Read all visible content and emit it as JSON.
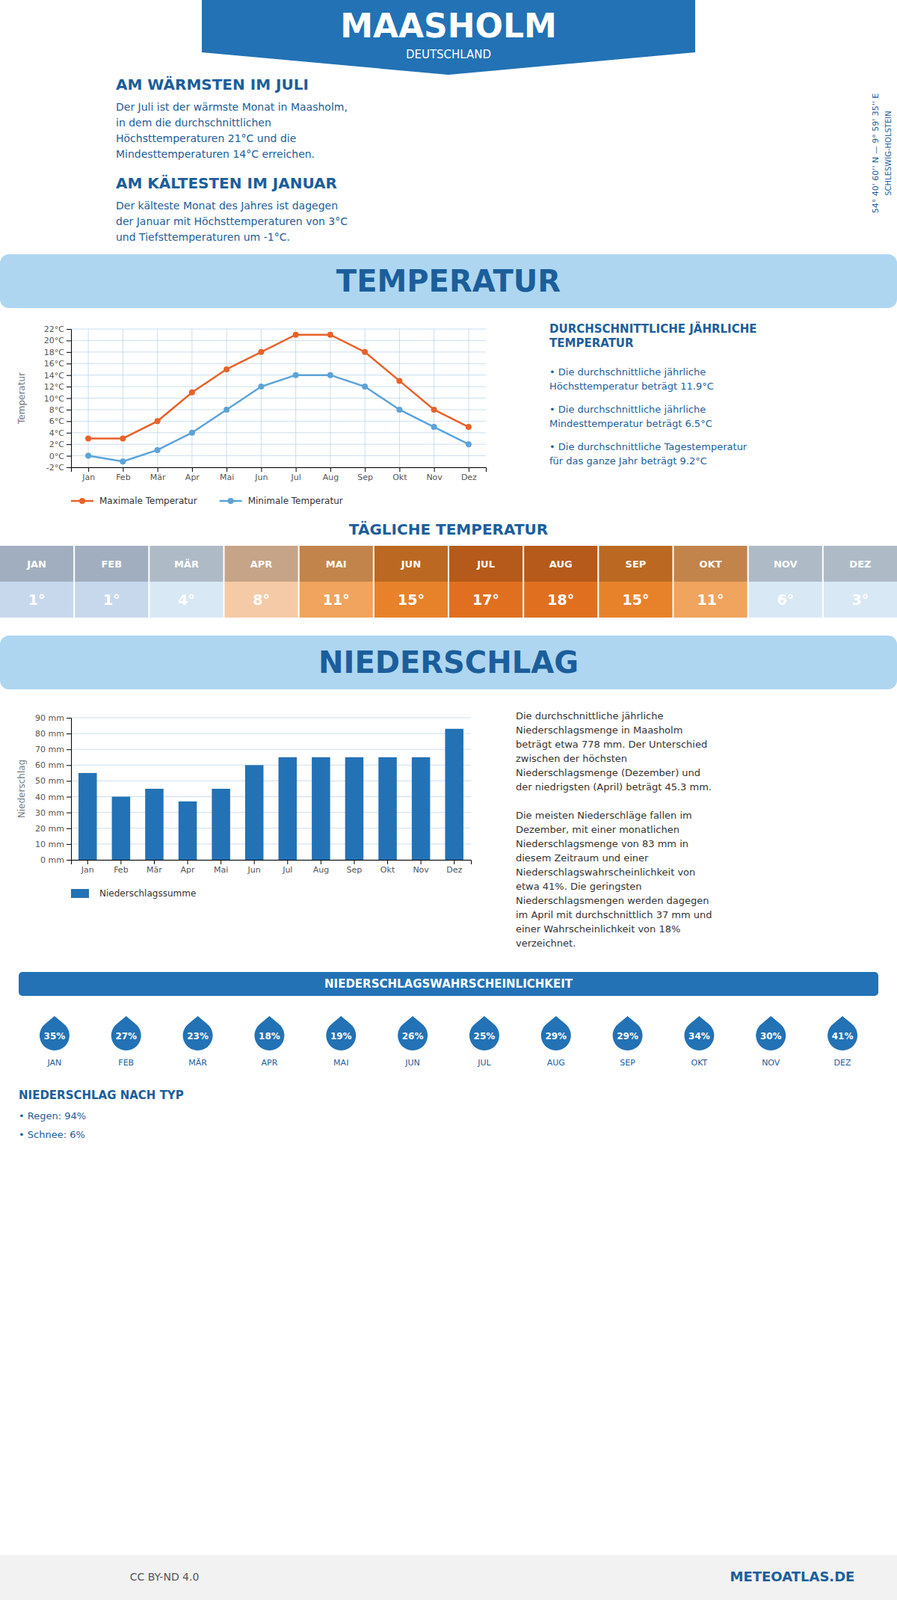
{
  "title": "MAASHOLM",
  "subtitle": "DEUTSCHLAND",
  "annotations": [
    "AM WÄRMSTEN IM JULI",
    "Der Juli ist der wärmste Monat in Maasholm,\nin dem die durchschnittlichen\nHöchsttemperaturen 21°C und die\nMindesttemperaturen 14°C erreichen.",
    "AM KÄLTESTEN IM JANUAR",
    "Der kälteste Monat des Jahres ist dagegen\nder Januar mit Höchsttemperaturen von 3°C\nund Tiefsttemperaturen um -1°C.",
    "54° 40' 60'' N  —  9° 59' 35'' E",
    "SCHLESWIG-HOLSTEIN",
    "CC BY-ND 4.0",
    "METEOATLAS.DE"
  ],
  "chart_data": [
    {
      "type": "line",
      "title": "TEMPERATUR",
      "ylabel": "Temperatur",
      "categories": [
        "Jan",
        "Feb",
        "Mär",
        "Apr",
        "Mai",
        "Jun",
        "Jul",
        "Aug",
        "Sep",
        "Okt",
        "Nov",
        "Dez"
      ],
      "series": [
        {
          "name": "Maximale Temperatur",
          "color": "#E8622A",
          "marker": "circle",
          "values": [
            3,
            3,
            6,
            11,
            15,
            18,
            21,
            21,
            18,
            13,
            8,
            5
          ]
        },
        {
          "name": "Minimale Temperatur",
          "color": "#5BA3D9",
          "marker": "circle",
          "values": [
            0,
            -1,
            1,
            4,
            8,
            12,
            14,
            14,
            12,
            8,
            5,
            2
          ]
        }
      ],
      "ylim": [
        -2,
        22
      ],
      "yticks": [
        {
          "value": -2,
          "label": "-2°C"
        },
        {
          "value": 0,
          "label": "0°C"
        },
        {
          "value": 2,
          "label": "2°C"
        },
        {
          "value": 4,
          "label": "4°C"
        },
        {
          "value": 6,
          "label": "6°C"
        },
        {
          "value": 8,
          "label": "8°C"
        },
        {
          "value": 10,
          "label": "10°C"
        },
        {
          "value": 12,
          "label": "12°C"
        },
        {
          "value": 14,
          "label": "14°C"
        },
        {
          "value": 16,
          "label": "16°C"
        },
        {
          "value": 18,
          "label": "18°C"
        },
        {
          "value": 20,
          "label": "20°C"
        },
        {
          "value": 22,
          "label": "22°C"
        }
      ],
      "grid": true,
      "legend": "bottom",
      "annotations": [
        "DURCHSCHNITTLICHE JÄHRLICHE\nTEMPERATUR",
        "• Die durchschnittliche jährliche\nHöchsttemperatur beträgt 11.9°C",
        "• Die durchschnittliche jährliche\nMindesttemperatur beträgt 6.5°C",
        "• Die durchschnittliche Tagestemperatur\nfür das ganze Jahr beträgt 9.2°C"
      ]
    },
    {
      "type": "table",
      "title": "TÄGLICHE TEMPERATUR",
      "categories": [
        "JAN",
        "FEB",
        "MÄR",
        "APR",
        "MAI",
        "JUN",
        "JUL",
        "AUG",
        "SEP",
        "OKT",
        "NOV",
        "DEZ"
      ],
      "values": [
        1,
        1,
        4,
        8,
        11,
        15,
        17,
        18,
        15,
        11,
        6,
        3
      ],
      "value_labels": [
        "1°",
        "1°",
        "4°",
        "8°",
        "11°",
        "15°",
        "17°",
        "18°",
        "15°",
        "11°",
        "6°",
        "3°"
      ],
      "colors": [
        "#C8D8EC",
        "#C8D8EC",
        "#D8E8F5",
        "#F5CBA7",
        "#F0A45D",
        "#E8822A",
        "#E07020",
        "#E07020",
        "#E8822A",
        "#F0A45D",
        "#D8E8F5",
        "#D8E8F5"
      ],
      "data_labels": true
    },
    {
      "type": "bar",
      "title": "NIEDERSCHLAG",
      "ylabel": "Niederschlag",
      "categories": [
        "Jan",
        "Feb",
        "Mär",
        "Apr",
        "Mai",
        "Jun",
        "Jul",
        "Aug",
        "Sep",
        "Okt",
        "Nov",
        "Dez"
      ],
      "series": [
        {
          "name": "Niederschlagssumme",
          "color": "#2272B5",
          "values": [
            55,
            40,
            45,
            37,
            45,
            60,
            65,
            65,
            65,
            65,
            65,
            83
          ]
        }
      ],
      "ylim": [
        0,
        90
      ],
      "yticks": [
        {
          "value": 0,
          "label": "0 mm"
        },
        {
          "value": 10,
          "label": "10 mm"
        },
        {
          "value": 20,
          "label": "20 mm"
        },
        {
          "value": 30,
          "label": "30 mm"
        },
        {
          "value": 40,
          "label": "40 mm"
        },
        {
          "value": 50,
          "label": "50 mm"
        },
        {
          "value": 60,
          "label": "60 mm"
        },
        {
          "value": 70,
          "label": "70 mm"
        },
        {
          "value": 80,
          "label": "80 mm"
        },
        {
          "value": 90,
          "label": "90 mm"
        }
      ],
      "grid": "y",
      "legend": "bottom",
      "annotations": [
        "Die durchschnittliche jährliche\nNiederschlagsmenge in Maasholm\nbeträgt etwa 778 mm. Der Unterschied\nzwischen der höchsten\nNiederschlagsmenge (Dezember) und\nder niedrigsten (April) beträgt 45.3 mm.\n\nDie meisten Niederschläge fallen im\nDezember, mit einer monatlichen\nNiederschlagsmenge von 83 mm in\ndiesem Zeitraum und einer\nNiederschlagswahrscheinlichkeit von\netwa 41%. Die geringsten\nNiederschlagsmengen werden dagegen\nim April mit durchschnittlich 37 mm und\neiner Wahrscheinlichkeit von 18%\nverzeichnet."
      ]
    },
    {
      "type": "dot",
      "title": "NIEDERSCHLAGSWAHRSCHEINLICHKEIT",
      "categories": [
        "JAN",
        "FEB",
        "MÄR",
        "APR",
        "MAI",
        "JUN",
        "JUL",
        "AUG",
        "SEP",
        "OKT",
        "NOV",
        "DEZ"
      ],
      "values": [
        35,
        27,
        23,
        18,
        19,
        26,
        25,
        29,
        29,
        34,
        30,
        41
      ],
      "value_labels": [
        "35%",
        "27%",
        "23%",
        "18%",
        "19%",
        "26%",
        "25%",
        "29%",
        "29%",
        "34%",
        "30%",
        "41%"
      ],
      "color": "#2272B5",
      "data_labels": true,
      "annotations": [
        "NIEDERSCHLAG NACH TYP",
        "• Regen: 94%",
        "• Schnee: 6%"
      ]
    }
  ]
}
